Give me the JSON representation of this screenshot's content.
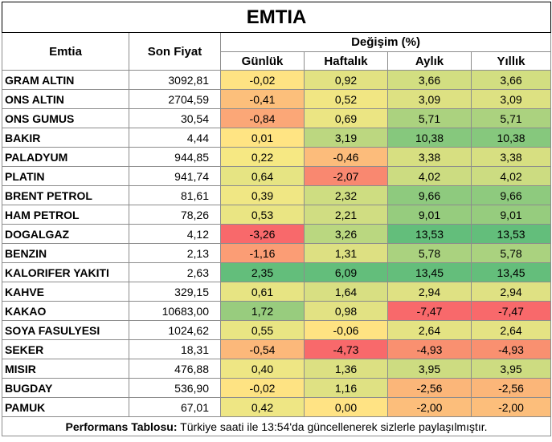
{
  "title": "EMTIA",
  "headers": {
    "commodity": "Emtia",
    "last_price": "Son Fiyat",
    "change_group": "Değişim (%)",
    "daily": "Günlük",
    "weekly": "Haftalık",
    "monthly": "Aylık",
    "yearly": "Yıllık"
  },
  "rows": [
    {
      "name": "GRAM ALTIN",
      "price": "3092,81",
      "daily": "-0,02",
      "weekly": "0,92",
      "monthly": "3,66",
      "yearly": "3,66",
      "colors": [
        "#fee383",
        "#e2e282",
        "#d2de81",
        "#d2de81"
      ]
    },
    {
      "name": "ONS ALTIN",
      "price": "2704,59",
      "daily": "-0,41",
      "weekly": "0,52",
      "monthly": "3,09",
      "yearly": "3,09",
      "colors": [
        "#fcbf7b",
        "#f1e683",
        "#dde182",
        "#dde182"
      ]
    },
    {
      "name": "ONS GUMUS",
      "price": "30,54",
      "daily": "-0,84",
      "weekly": "0,69",
      "monthly": "5,71",
      "yearly": "5,71",
      "colors": [
        "#fba777",
        "#ebe583",
        "#abd27f",
        "#abd27f"
      ]
    },
    {
      "name": "BAKIR",
      "price": "4,44",
      "daily": "0,01",
      "weekly": "3,19",
      "monthly": "10,38",
      "yearly": "10,38",
      "colors": [
        "#ffe483",
        "#bcd780",
        "#86c87d",
        "#86c87d"
      ]
    },
    {
      "name": "PALADYUM",
      "price": "944,85",
      "daily": "0,22",
      "weekly": "-0,46",
      "monthly": "3,38",
      "yearly": "3,38",
      "colors": [
        "#f6e883",
        "#fcbc7b",
        "#d7df81",
        "#d7df81"
      ]
    },
    {
      "name": "PLATIN",
      "price": "941,74",
      "daily": "0,64",
      "weekly": "-2,07",
      "monthly": "4,02",
      "yearly": "4,02",
      "colors": [
        "#e6e483",
        "#f98870",
        "#ccdc81",
        "#ccdc81"
      ]
    },
    {
      "name": "BRENT PETROL",
      "price": "81,61",
      "daily": "0,39",
      "weekly": "2,32",
      "monthly": "9,66",
      "yearly": "9,66",
      "colors": [
        "#f0e784",
        "#cedd81",
        "#8eca7e",
        "#8eca7e"
      ]
    },
    {
      "name": "HAM PETROL",
      "price": "78,26",
      "daily": "0,53",
      "weekly": "2,21",
      "monthly": "9,01",
      "yearly": "9,01",
      "colors": [
        "#eae583",
        "#d0dd82",
        "#96cc7e",
        "#96cc7e"
      ]
    },
    {
      "name": "DOGALGAZ",
      "price": "4,12",
      "daily": "-3,26",
      "weekly": "3,26",
      "monthly": "13,53",
      "yearly": "13,53",
      "colors": [
        "#f8696b",
        "#bad780",
        "#63be7b",
        "#63be7b"
      ]
    },
    {
      "name": "BENZIN",
      "price": "2,13",
      "daily": "-1,16",
      "weekly": "1,31",
      "monthly": "5,78",
      "yearly": "5,78",
      "colors": [
        "#fb9d75",
        "#dde082",
        "#aad27f",
        "#aad27f"
      ]
    },
    {
      "name": "KALORIFER YAKITI",
      "price": "2,63",
      "daily": "2,35",
      "weekly": "6,09",
      "monthly": "13,45",
      "yearly": "13,45",
      "colors": [
        "#63be7b",
        "#63be7b",
        "#64be7b",
        "#64be7b"
      ]
    },
    {
      "name": "KAHVE",
      "price": "329,15",
      "daily": "0,61",
      "weekly": "1,64",
      "monthly": "2,94",
      "yearly": "2,94",
      "colors": [
        "#e7e483",
        "#d8df82",
        "#dfe183",
        "#dfe183"
      ]
    },
    {
      "name": "KAKAO",
      "price": "10683,00",
      "daily": "1,72",
      "weekly": "0,98",
      "monthly": "-7,47",
      "yearly": "-7,47",
      "colors": [
        "#98cc7e",
        "#e2e283",
        "#f8696b",
        "#f8696b"
      ]
    },
    {
      "name": "SOYA FASULYESI",
      "price": "1024,62",
      "daily": "0,55",
      "weekly": "-0,06",
      "monthly": "2,64",
      "yearly": "2,64",
      "colors": [
        "#e9e583",
        "#fee382",
        "#e4e383",
        "#e4e383"
      ]
    },
    {
      "name": "SEKER",
      "price": "18,31",
      "daily": "-0,54",
      "weekly": "-4,73",
      "monthly": "-4,93",
      "yearly": "-4,93",
      "colors": [
        "#fcb87a",
        "#f8696b",
        "#f99070",
        "#f99070"
      ]
    },
    {
      "name": "MISIR",
      "price": "476,88",
      "daily": "0,40",
      "weekly": "1,36",
      "monthly": "3,95",
      "yearly": "3,95",
      "colors": [
        "#eee684",
        "#dce082",
        "#cddc81",
        "#cddc81"
      ]
    },
    {
      "name": "BUGDAY",
      "price": "536,90",
      "daily": "-0,02",
      "weekly": "1,16",
      "monthly": "-2,56",
      "yearly": "-2,56",
      "colors": [
        "#fee383",
        "#dfe183",
        "#fbb679",
        "#fbb679"
      ]
    },
    {
      "name": "PAMUK",
      "price": "67,01",
      "daily": "0,42",
      "weekly": "0,00",
      "monthly": "-2,00",
      "yearly": "-2,00",
      "colors": [
        "#eee684",
        "#ffe384",
        "#fcbe7b",
        "#fcbe7b"
      ]
    }
  ],
  "footer": {
    "label": "Performans Tablosu:",
    "text": " Türkiye saati ile 13:54'da güncellenerek sizlerle paylaşılmıştır."
  }
}
